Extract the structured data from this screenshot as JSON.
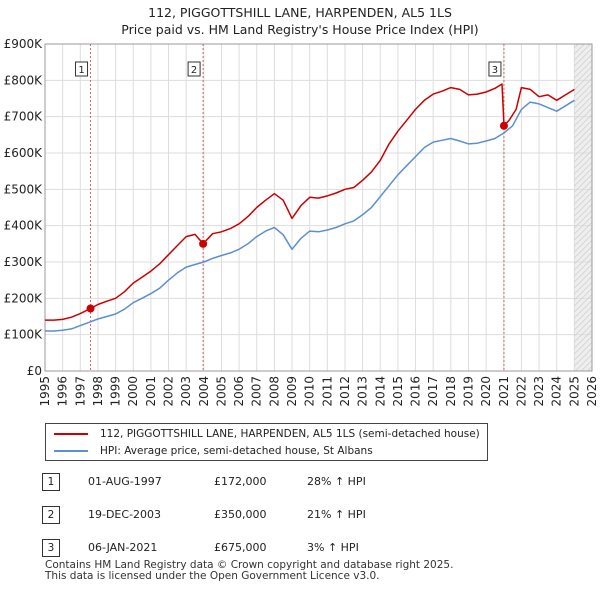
{
  "title": {
    "line1": "112, PIGGOTTSHILL LANE, HARPENDEN, AL5 1LS",
    "line2": "Price paid vs. HM Land Registry's House Price Index (HPI)"
  },
  "colors": {
    "property": "#cc0000",
    "hpi": "#5b8fcf",
    "grid": "#dddddd",
    "sale_vline": "#cc6666",
    "future_shade": "#eeeeee"
  },
  "chart_data": {
    "type": "line",
    "title": "112, PIGGOTTSHILL LANE, HARPENDEN, AL5 1LS — Price paid vs. HM Land Registry's House Price Index (HPI)",
    "xlabel": "",
    "ylabel": "",
    "xlim": [
      1995,
      2026
    ],
    "ylim": [
      0,
      900000
    ],
    "y_ticks": [
      0,
      100000,
      200000,
      300000,
      400000,
      500000,
      600000,
      700000,
      800000,
      900000
    ],
    "y_tick_labels": [
      "£0",
      "£100K",
      "£200K",
      "£300K",
      "£400K",
      "£500K",
      "£600K",
      "£700K",
      "£800K",
      "£900K"
    ],
    "x_ticks": [
      1995,
      1996,
      1997,
      1998,
      1999,
      2000,
      2001,
      2002,
      2003,
      2004,
      2005,
      2006,
      2007,
      2008,
      2009,
      2010,
      2011,
      2012,
      2013,
      2014,
      2015,
      2016,
      2017,
      2018,
      2019,
      2020,
      2021,
      2022,
      2023,
      2024,
      2025,
      2026
    ],
    "x_tick_labels": [
      "1995",
      "1996",
      "1997",
      "1998",
      "1999",
      "2000",
      "2001",
      "2002",
      "2003",
      "2004",
      "2005",
      "2006",
      "2007",
      "2008",
      "2009",
      "2010",
      "2011",
      "2012",
      "2013",
      "2014",
      "2015",
      "2016",
      "2017",
      "2018",
      "2019",
      "2020",
      "2021",
      "2022",
      "2023",
      "2024",
      "2025",
      "2026"
    ],
    "grid": true,
    "future_start": 2025.0,
    "series": [
      {
        "name": "112, PIGGOTTSHILL LANE, HARPENDEN, AL5 1LS (semi-detached house)",
        "color": "#cc0000",
        "x": [
          1995.0,
          1995.5,
          1996.0,
          1996.5,
          1997.0,
          1997.58,
          1998.0,
          1998.5,
          1999.0,
          1999.5,
          2000.0,
          2000.5,
          2001.0,
          2001.5,
          2002.0,
          2002.5,
          2003.0,
          2003.5,
          2003.96,
          2004.5,
          2005.0,
          2005.5,
          2006.0,
          2006.5,
          2007.0,
          2007.5,
          2008.0,
          2008.5,
          2009.0,
          2009.5,
          2010.0,
          2010.5,
          2011.0,
          2011.5,
          2012.0,
          2012.5,
          2013.0,
          2013.5,
          2014.0,
          2014.5,
          2015.0,
          2015.5,
          2016.0,
          2016.5,
          2017.0,
          2017.5,
          2018.0,
          2018.5,
          2019.0,
          2019.5,
          2020.0,
          2020.5,
          2020.9,
          2021.01,
          2021.3,
          2021.7,
          2022.0,
          2022.5,
          2023.0,
          2023.5,
          2024.0,
          2024.5,
          2025.0
        ],
        "values": [
          140000,
          140000,
          142000,
          148000,
          158000,
          172000,
          183000,
          192000,
          200000,
          218000,
          242000,
          258000,
          275000,
          295000,
          320000,
          345000,
          370000,
          376000,
          350000,
          378000,
          383000,
          392000,
          405000,
          425000,
          450000,
          470000,
          488000,
          470000,
          420000,
          455000,
          478000,
          476000,
          482000,
          490000,
          500000,
          505000,
          525000,
          548000,
          580000,
          625000,
          660000,
          690000,
          720000,
          745000,
          762000,
          770000,
          780000,
          775000,
          760000,
          762000,
          768000,
          778000,
          790000,
          675000,
          690000,
          720000,
          780000,
          775000,
          755000,
          760000,
          745000,
          760000,
          775000
        ]
      },
      {
        "name": "HPI: Average price, semi-detached house, St Albans",
        "color": "#5b8fcf",
        "x": [
          1995.0,
          1995.5,
          1996.0,
          1996.5,
          1997.0,
          1997.5,
          1998.0,
          1998.5,
          1999.0,
          1999.5,
          2000.0,
          2000.5,
          2001.0,
          2001.5,
          2002.0,
          2002.5,
          2003.0,
          2003.5,
          2004.0,
          2004.5,
          2005.0,
          2005.5,
          2006.0,
          2006.5,
          2007.0,
          2007.5,
          2008.0,
          2008.5,
          2009.0,
          2009.5,
          2010.0,
          2010.5,
          2011.0,
          2011.5,
          2012.0,
          2012.5,
          2013.0,
          2013.5,
          2014.0,
          2014.5,
          2015.0,
          2015.5,
          2016.0,
          2016.5,
          2017.0,
          2017.5,
          2018.0,
          2018.5,
          2019.0,
          2019.5,
          2020.0,
          2020.5,
          2021.0,
          2021.5,
          2022.0,
          2022.5,
          2023.0,
          2023.5,
          2024.0,
          2024.5,
          2025.0
        ],
        "values": [
          110000,
          110000,
          112000,
          116000,
          125000,
          134000,
          143000,
          150000,
          157000,
          170000,
          188000,
          200000,
          213000,
          228000,
          250000,
          270000,
          286000,
          293000,
          300000,
          310000,
          318000,
          325000,
          335000,
          350000,
          370000,
          385000,
          395000,
          375000,
          335000,
          365000,
          385000,
          383000,
          388000,
          395000,
          405000,
          413000,
          430000,
          450000,
          480000,
          510000,
          540000,
          565000,
          590000,
          615000,
          630000,
          635000,
          640000,
          633000,
          625000,
          627000,
          633000,
          640000,
          655000,
          675000,
          720000,
          740000,
          735000,
          725000,
          715000,
          730000,
          745000
        ]
      }
    ],
    "sales": [
      {
        "label": "1",
        "x": 1997.58,
        "value": 172000
      },
      {
        "label": "2",
        "x": 2003.96,
        "value": 350000
      },
      {
        "label": "3",
        "x": 2021.01,
        "value": 675000
      }
    ]
  },
  "legend": {
    "property_label": "112, PIGGOTTSHILL LANE, HARPENDEN, AL5 1LS (semi-detached house)",
    "hpi_label": "HPI: Average price, semi-detached house, St Albans"
  },
  "sales_table": [
    {
      "num": "1",
      "date": "01-AUG-1997",
      "price": "£172,000",
      "hpi": "28% ↑ HPI"
    },
    {
      "num": "2",
      "date": "19-DEC-2003",
      "price": "£350,000",
      "hpi": "21% ↑ HPI"
    },
    {
      "num": "3",
      "date": "06-JAN-2021",
      "price": "£675,000",
      "hpi": "3% ↑ HPI"
    }
  ],
  "footer": {
    "line1": "Contains HM Land Registry data © Crown copyright and database right 2025.",
    "line2": "This data is licensed under the Open Government Licence v3.0."
  }
}
